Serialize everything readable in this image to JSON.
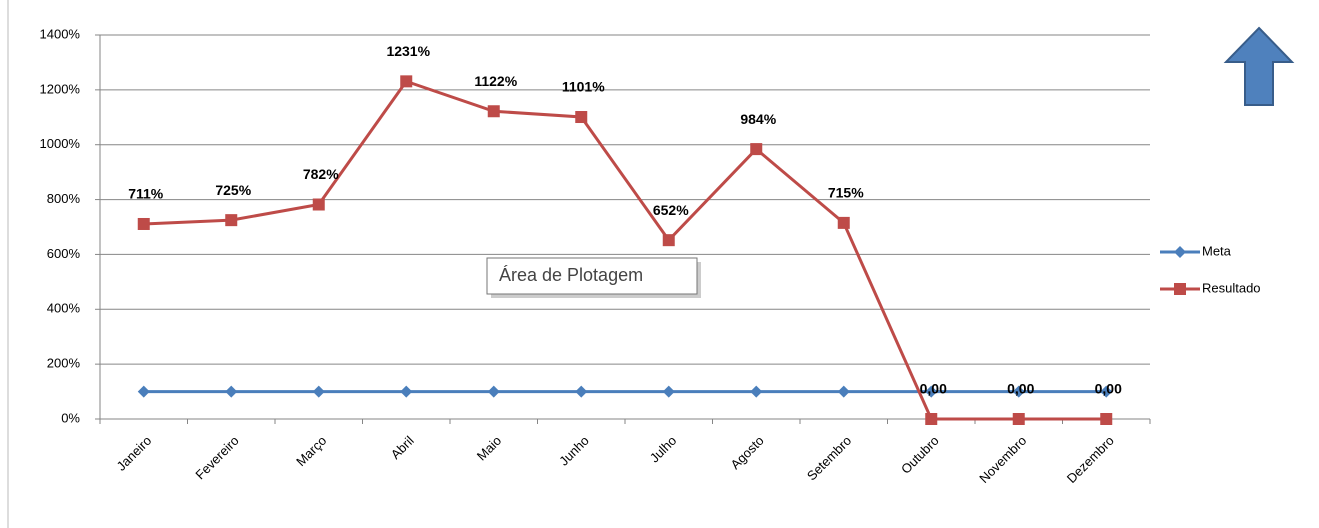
{
  "chart_data": {
    "type": "line",
    "categories": [
      "Janeiro",
      "Fevereiro",
      "Março",
      "Abril",
      "Maio",
      "Junho",
      "Julho",
      "Agosto",
      "Setembro",
      "Outubro",
      "Novembro",
      "Dezembro"
    ],
    "series": [
      {
        "name": "Meta",
        "color": "#4a7ebb",
        "marker": "diamond",
        "values": [
          100,
          100,
          100,
          100,
          100,
          100,
          100,
          100,
          100,
          100,
          100,
          100
        ]
      },
      {
        "name": "Resultado",
        "color": "#be4b48",
        "marker": "square",
        "values": [
          711,
          725,
          782,
          1231,
          1122,
          1101,
          652,
          984,
          715,
          0,
          0,
          0
        ],
        "value_labels": [
          "711%",
          "725%",
          "782%",
          "1231%",
          "1122%",
          "1101%",
          "652%",
          "984%",
          "715%",
          "0,00",
          "0,00",
          "0,00"
        ]
      }
    ],
    "ylim": [
      0,
      1400
    ],
    "yticks": [
      {
        "value": 0,
        "label": "0%"
      },
      {
        "value": 200,
        "label": "200%"
      },
      {
        "value": 400,
        "label": "400%"
      },
      {
        "value": 600,
        "label": "600%"
      },
      {
        "value": 800,
        "label": "800%"
      },
      {
        "value": 1000,
        "label": "1000%"
      },
      {
        "value": 1200,
        "label": "1200%"
      },
      {
        "value": 1400,
        "label": "1400%"
      }
    ],
    "grid": true,
    "legend": "right",
    "tooltip": "Área de Plotagem"
  }
}
